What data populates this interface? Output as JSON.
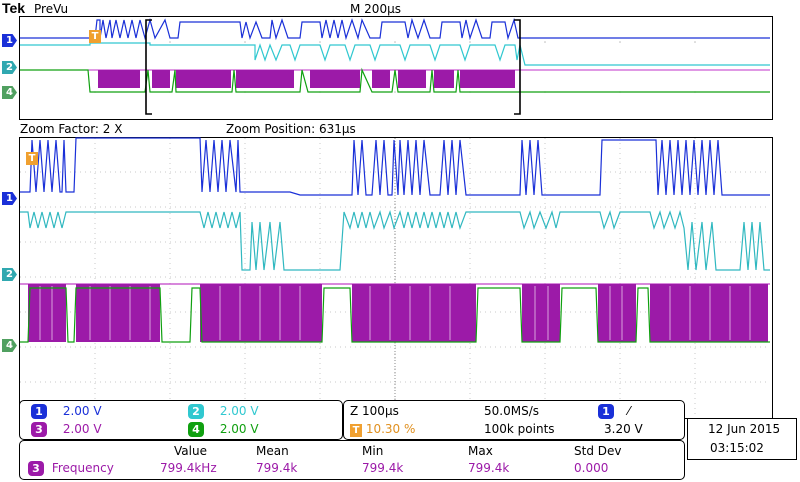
{
  "header": {
    "brand": "Tek",
    "mode": "PreVu",
    "timebase": "M 200µs"
  },
  "channel_markers": [
    "1",
    "2",
    "4"
  ],
  "zoom": {
    "factor": "Zoom Factor: 2 X",
    "position": "Zoom Position: 631µs"
  },
  "trigger_marker": "T",
  "channels": [
    {
      "num": "1",
      "volts": "2.00 V",
      "color": "#1a30d8"
    },
    {
      "num": "2",
      "volts": "2.00 V",
      "color": "#30c8d0"
    },
    {
      "num": "3",
      "volts": "2.00 V",
      "color": "#9c1aa8"
    },
    {
      "num": "4",
      "volts": "2.00 V",
      "color": "#10a010"
    }
  ],
  "acquisition": {
    "zoom_time": "Z 100µs",
    "sample_rate": "50.0MS/s",
    "trigger_pos": "10.30 %",
    "record_length": "100k points",
    "trigger_source": "1",
    "trigger_slope": "⁄",
    "trigger_level": "3.20 V"
  },
  "datetime": {
    "date": "12 Jun  2015",
    "time": "03:15:02"
  },
  "measurement": {
    "headers": [
      "Value",
      "Mean",
      "Min",
      "Max",
      "Std Dev"
    ],
    "source": "3",
    "name": "Frequency",
    "values": [
      "799.4kHz",
      "799.4k",
      "799.4k",
      "799.4k",
      "0.000"
    ]
  }
}
